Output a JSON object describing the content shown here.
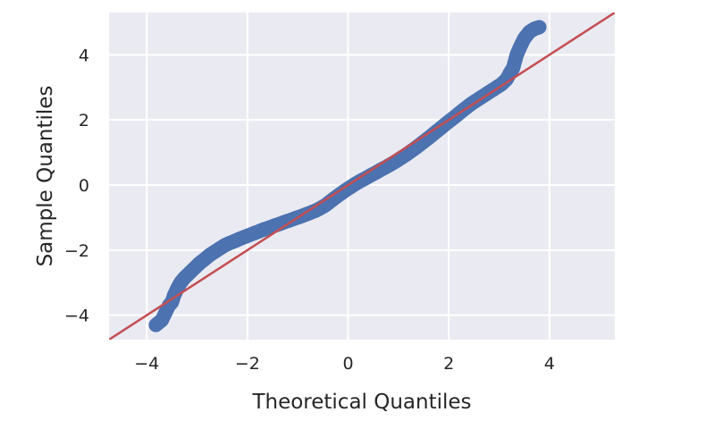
{
  "chart_data": {
    "type": "scatter",
    "title": "",
    "xlabel": "Theoretical Quantiles",
    "ylabel": "Sample Quantiles",
    "xlim": [
      -4.75,
      5.3
    ],
    "ylim": [
      -4.75,
      5.3
    ],
    "xticks": [
      -4,
      -2,
      0,
      2,
      4
    ],
    "yticks": [
      -4,
      -2,
      0,
      2,
      4
    ],
    "xtick_labels": [
      "−4",
      "−2",
      "0",
      "2",
      "4"
    ],
    "ytick_labels": [
      "−4",
      "−2",
      "0",
      "2",
      "4"
    ],
    "grid": true,
    "style": "seaborn-darkgrid",
    "colors": {
      "background": "#eaeaf2",
      "grid": "#ffffff",
      "points": "#4c72b0",
      "line": "#c44e52",
      "text": "#262626"
    },
    "reference_line": {
      "type": "45-degree",
      "x": [
        -4.75,
        5.3
      ],
      "y": [
        -4.75,
        5.3
      ]
    },
    "series": [
      {
        "points": [
          [
            -3.82,
            -4.3
          ],
          [
            -3.7,
            -4.15
          ],
          [
            -3.56,
            -3.7
          ],
          [
            -3.5,
            -3.6
          ],
          [
            -3.46,
            -3.4
          ],
          [
            -3.4,
            -3.2
          ],
          [
            -3.33,
            -3.0
          ],
          [
            -3.25,
            -2.85
          ],
          [
            -3.15,
            -2.7
          ],
          [
            -3.05,
            -2.55
          ],
          [
            -2.95,
            -2.4
          ],
          [
            -2.85,
            -2.28
          ],
          [
            -2.75,
            -2.15
          ],
          [
            -2.65,
            -2.05
          ],
          [
            -2.55,
            -1.95
          ],
          [
            -2.45,
            -1.85
          ],
          [
            -2.35,
            -1.78
          ],
          [
            -2.25,
            -1.72
          ],
          [
            -2.15,
            -1.65
          ],
          [
            -2.05,
            -1.59
          ],
          [
            -1.95,
            -1.53
          ],
          [
            -1.85,
            -1.47
          ],
          [
            -1.75,
            -1.41
          ],
          [
            -1.65,
            -1.35
          ],
          [
            -1.55,
            -1.3
          ],
          [
            -1.45,
            -1.24
          ],
          [
            -1.35,
            -1.19
          ],
          [
            -1.25,
            -1.13
          ],
          [
            -1.15,
            -1.08
          ],
          [
            -1.05,
            -1.02
          ],
          [
            -0.95,
            -0.97
          ],
          [
            -0.85,
            -0.91
          ],
          [
            -0.75,
            -0.85
          ],
          [
            -0.65,
            -0.79
          ],
          [
            -0.55,
            -0.71
          ],
          [
            -0.45,
            -0.62
          ],
          [
            -0.35,
            -0.5
          ],
          [
            -0.25,
            -0.38
          ],
          [
            -0.15,
            -0.27
          ],
          [
            -0.05,
            -0.16
          ],
          [
            0.05,
            -0.06
          ],
          [
            0.15,
            0.04
          ],
          [
            0.25,
            0.13
          ],
          [
            0.35,
            0.21
          ],
          [
            0.45,
            0.3
          ],
          [
            0.55,
            0.38
          ],
          [
            0.65,
            0.47
          ],
          [
            0.75,
            0.55
          ],
          [
            0.85,
            0.64
          ],
          [
            0.95,
            0.73
          ],
          [
            1.05,
            0.83
          ],
          [
            1.15,
            0.93
          ],
          [
            1.25,
            1.04
          ],
          [
            1.35,
            1.15
          ],
          [
            1.45,
            1.27
          ],
          [
            1.55,
            1.39
          ],
          [
            1.65,
            1.51
          ],
          [
            1.75,
            1.64
          ],
          [
            1.85,
            1.76
          ],
          [
            1.95,
            1.89
          ],
          [
            2.05,
            2.01
          ],
          [
            2.15,
            2.13
          ],
          [
            2.25,
            2.26
          ],
          [
            2.35,
            2.38
          ],
          [
            2.45,
            2.5
          ],
          [
            2.55,
            2.6
          ],
          [
            2.65,
            2.7
          ],
          [
            2.75,
            2.8
          ],
          [
            2.85,
            2.9
          ],
          [
            2.95,
            3.0
          ],
          [
            3.05,
            3.1
          ],
          [
            3.15,
            3.25
          ],
          [
            3.22,
            3.45
          ],
          [
            3.28,
            3.6
          ],
          [
            3.35,
            4.0
          ],
          [
            3.42,
            4.25
          ],
          [
            3.5,
            4.5
          ],
          [
            3.6,
            4.7
          ],
          [
            3.7,
            4.8
          ],
          [
            3.8,
            4.85
          ]
        ]
      }
    ]
  }
}
